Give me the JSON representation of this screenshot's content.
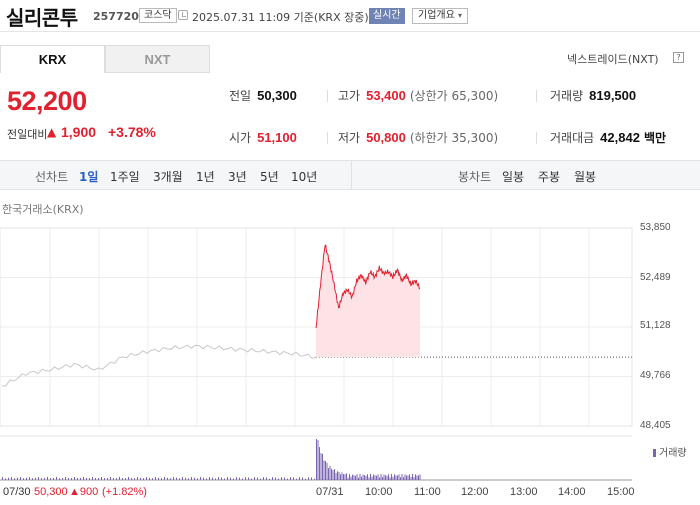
{
  "header": {
    "stock_name": "실리콘투",
    "stock_code": "257720",
    "market_badge": "코스닥",
    "datetime": "2025.07.31 11:09 기준(KRX 장중)",
    "realtime_badge": "실시간",
    "company_button": "기업개요"
  },
  "tabs": [
    {
      "label": "KRX",
      "active": true
    },
    {
      "label": "NXT",
      "active": false
    }
  ],
  "nextrade_label": "넥스트레이드(NXT)",
  "help_label": "?",
  "price": {
    "current": "52,200",
    "change_label": "전일대비",
    "change_symbol": "▲",
    "change_value": "1,900",
    "change_pct": "+3.78%"
  },
  "stats": {
    "prev_label": "전일",
    "prev_value": "50,300",
    "open_label": "시가",
    "open_value": "51,100",
    "high_label": "고가",
    "high_value": "53,400",
    "upper_limit": "(상한가 65,300)",
    "low_label": "저가",
    "low_value": "50,800",
    "lower_limit": "(하한가 35,300)",
    "volume_label": "거래량",
    "volume_value": "819,500",
    "amount_label": "거래대금",
    "amount_value": "42,842",
    "amount_unit": "백만"
  },
  "period_bar": {
    "line_chart_label": "선차트",
    "periods": [
      "1일",
      "1주일",
      "3개월",
      "1년",
      "3년",
      "5년",
      "10년"
    ],
    "selected": "1일",
    "candle_chart_label": "봉차트",
    "candles": [
      "일봉",
      "주봉",
      "월봉"
    ]
  },
  "chart_source": "한국거래소(KRX)",
  "chart_data": {
    "type": "line",
    "y_ticks": [
      "53,850",
      "52,489",
      "51,128",
      "49,766",
      "48,405"
    ],
    "ylim": [
      48405,
      53850
    ],
    "x_labels": [
      "07/31",
      "10:00",
      "11:00",
      "12:00",
      "13:00",
      "14:00",
      "15:00"
    ],
    "prev_close": 50300,
    "prev_day": {
      "label": "07/30",
      "close": "50,300",
      "change": "▲900",
      "change_pct": "(+1.82%)",
      "values": [
        49500,
        49850,
        49950,
        50100,
        49950,
        50300,
        50450,
        50550,
        50600,
        50550,
        50500,
        50450,
        50400,
        50300
      ]
    },
    "today": {
      "values": [
        51100,
        52300,
        53400,
        52900,
        52300,
        51650,
        52050,
        52150,
        51950,
        52400,
        52550,
        52350,
        52650,
        52500,
        52750,
        52600,
        52650,
        52500,
        52700,
        52400,
        52550,
        52300,
        52400,
        52200
      ]
    },
    "volume_label": "거래량",
    "colors": {
      "today_line": "#e0212e",
      "today_fill": "#fde3e5",
      "prev_line": "#c8c8c8",
      "volume": "#7b64b3"
    }
  }
}
